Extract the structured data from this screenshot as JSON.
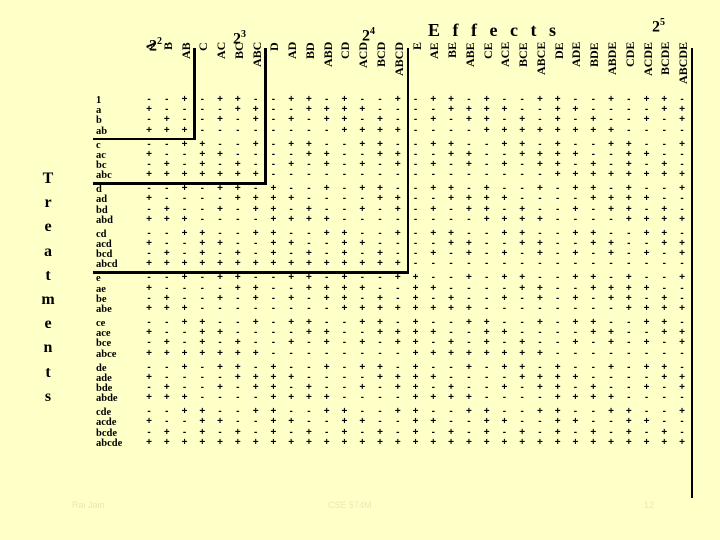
{
  "slide": {
    "title": "E f f e c t s",
    "powers": [
      {
        "base": "2",
        "exp": "2"
      },
      {
        "base": "2",
        "exp": "3"
      },
      {
        "base": "2",
        "exp": "4"
      },
      {
        "base": "2",
        "exp": "5"
      }
    ],
    "side_letters": [
      "T",
      "r",
      "e",
      "a",
      "t",
      "m",
      "e",
      "n",
      "t",
      "s"
    ],
    "effects": [
      "A",
      "B",
      "AB",
      "C",
      "AC",
      "BC",
      "ABC",
      "D",
      "AD",
      "BD",
      "ABD",
      "CD",
      "ACD",
      "BCD",
      "ABCD",
      "E",
      "AE",
      "BE",
      "ABE",
      "CE",
      "ACE",
      "BCE",
      "ABCE",
      "DE",
      "ADE",
      "BDE",
      "ABDE",
      "CDE",
      "ACDE",
      "BCDE",
      "ABCDE"
    ],
    "treatments": [
      "1",
      "a",
      "b",
      "ab",
      "c",
      "ac",
      "bc",
      "abc",
      "d",
      "ad",
      "bd",
      "abd",
      "cd",
      "acd",
      "bcd",
      "abcd",
      "e",
      "ae",
      "be",
      "abe",
      "ce",
      "ace",
      "bce",
      "abce",
      "de",
      "ade",
      "bde",
      "abde",
      "cde",
      "acde",
      "bcde",
      "abcde"
    ],
    "footer": {
      "left": "Rai Jain",
      "center": "CSE 574M",
      "right": "12"
    }
  },
  "colors": {
    "background": "#ffffc8",
    "text": "#000000",
    "footer": "#e8e8b8"
  }
}
